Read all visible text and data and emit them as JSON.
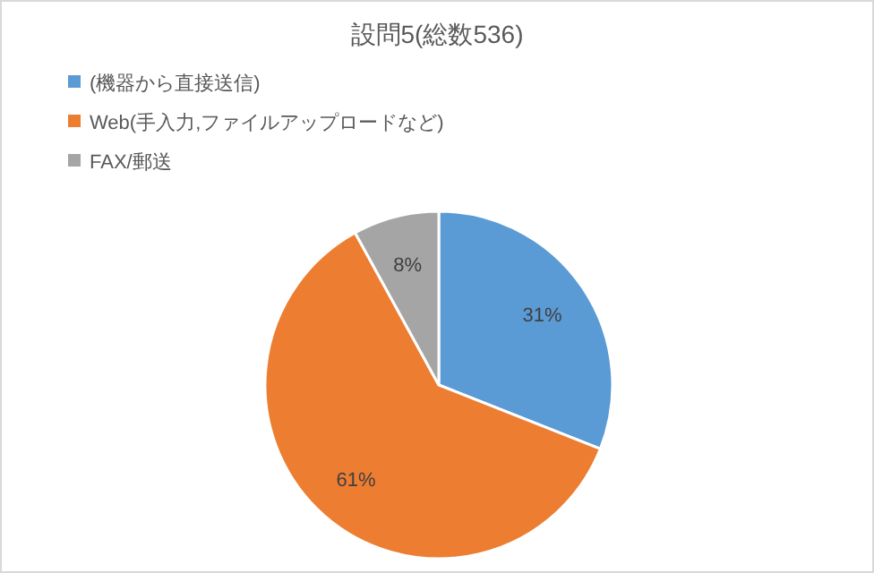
{
  "chart_data": {
    "type": "pie",
    "title": "設問5(総数536)",
    "categories": [
      "(機器から直接送信)",
      "Web(手入力,ファイルアップロードなど)",
      "FAX/郵送"
    ],
    "values": [
      31,
      61,
      8
    ],
    "colors": [
      "#5b9bd5",
      "#ed7d31",
      "#a5a5a5"
    ],
    "value_labels": [
      "31%",
      "61%",
      "8%"
    ],
    "legend": "top left"
  }
}
